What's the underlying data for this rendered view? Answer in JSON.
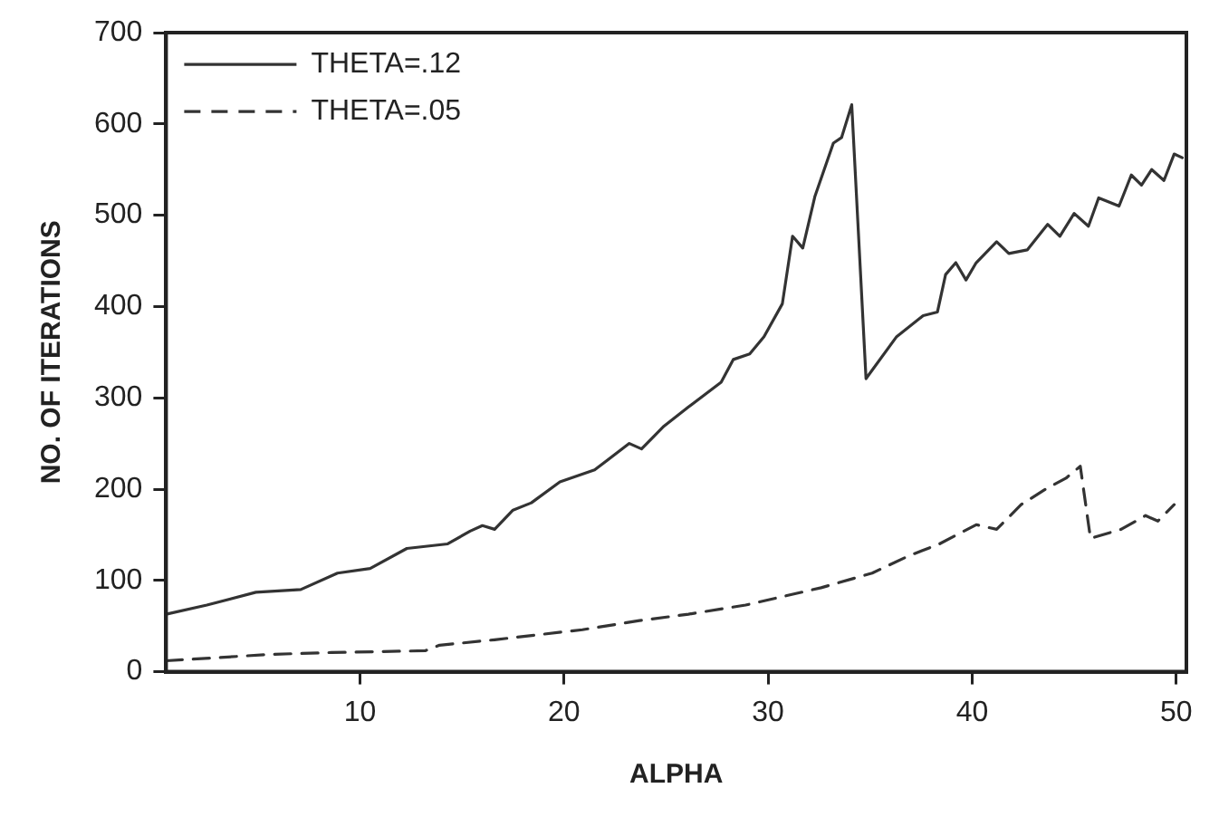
{
  "chart_data": {
    "type": "line",
    "xlabel": "ALPHA",
    "ylabel": "NO. OF ITERATIONS",
    "xlim": [
      0.5,
      50.5
    ],
    "xticks": [
      10,
      20,
      30,
      40,
      50
    ],
    "ylim": [
      0,
      700
    ],
    "yticks": [
      0,
      100,
      200,
      300,
      400,
      500,
      600,
      700
    ],
    "grid": false,
    "legend": "top left",
    "marker": "none",
    "series": [
      {
        "name": "THETA=.12",
        "color": "#333333",
        "line_style": "solid",
        "x": [
          0.5,
          2.5,
          4.9,
          7.1,
          8.9,
          10.5,
          12.3,
          14.3,
          15.4,
          16.0,
          16.6,
          17.5,
          18.4,
          19.8,
          21.5,
          23.2,
          23.8,
          24.9,
          26.1,
          27.7,
          28.3,
          29.1,
          29.8,
          30.7,
          31.2,
          31.7,
          32.3,
          33.2,
          33.6,
          34.1,
          34.8,
          36.3,
          37.6,
          38.3,
          38.7,
          39.2,
          39.7,
          40.2,
          41.2,
          41.8,
          42.7,
          43.7,
          44.3,
          45.0,
          45.7,
          46.2,
          47.2,
          47.8,
          48.3,
          48.8,
          49.4,
          49.9,
          50.3
        ],
        "values": [
          63,
          73,
          87,
          90,
          108,
          113,
          135,
          140,
          154,
          160,
          156,
          177,
          185,
          208,
          221,
          250,
          244,
          269,
          290,
          317,
          342,
          348,
          367,
          403,
          477,
          464,
          521,
          579,
          585,
          621,
          321,
          367,
          390,
          394,
          435,
          448,
          429,
          448,
          471,
          458,
          462,
          490,
          477,
          502,
          488,
          519,
          510,
          544,
          533,
          550,
          538,
          567,
          563
        ]
      },
      {
        "name": "THETA=.05",
        "color": "#333333",
        "line_style": "dashed",
        "x": [
          0.5,
          5.6,
          8.6,
          13.2,
          13.9,
          16.6,
          20.9,
          23.7,
          26.1,
          28.9,
          32.6,
          35.1,
          36.9,
          38.4,
          40.2,
          41.2,
          42.4,
          43.6,
          44.6,
          45.3,
          45.8,
          47.3,
          48.5,
          49.1,
          49.9
        ],
        "values": [
          12,
          19,
          21,
          23,
          29,
          35,
          46,
          56,
          63,
          73,
          92,
          108,
          127,
          140,
          161,
          156,
          183,
          200,
          212,
          225,
          146,
          156,
          171,
          165,
          183
        ]
      }
    ]
  }
}
